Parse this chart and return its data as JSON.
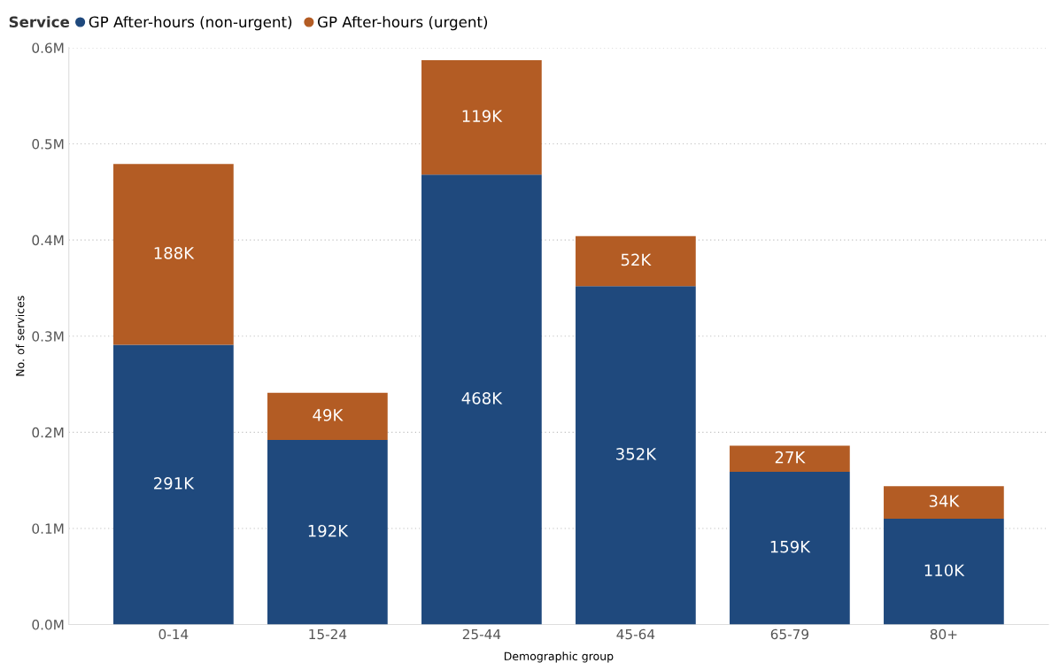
{
  "chart_data": {
    "type": "bar",
    "stacked": true,
    "xlabel": "Demographic group",
    "ylabel": "No. of services",
    "legend_title": "Service",
    "legend": "top left",
    "categories": [
      "0-14",
      "15-24",
      "25-44",
      "45-64",
      "65-79",
      "80+"
    ],
    "series": [
      {
        "name": "GP After-hours (non-urgent)",
        "color": "#1f497d",
        "values": [
          291000,
          192000,
          468000,
          352000,
          159000,
          110000
        ],
        "value_labels": [
          "291K",
          "192K",
          "468K",
          "352K",
          "159K",
          "110K"
        ]
      },
      {
        "name": "GP After-hours (urgent)",
        "color": "#b35c24",
        "values": [
          188000,
          49000,
          119000,
          52000,
          27000,
          34000
        ],
        "value_labels": [
          "188K",
          "49K",
          "119K",
          "52K",
          "27K",
          "34K"
        ]
      }
    ],
    "ylim": [
      0,
      600000
    ],
    "yticks": [
      {
        "value": 0,
        "label": "0.0M"
      },
      {
        "value": 100000,
        "label": "0.1M"
      },
      {
        "value": 200000,
        "label": "0.2M"
      },
      {
        "value": 300000,
        "label": "0.3M"
      },
      {
        "value": 400000,
        "label": "0.4M"
      },
      {
        "value": 500000,
        "label": "0.5M"
      },
      {
        "value": 600000,
        "label": "0.6M"
      }
    ],
    "grid": "y"
  }
}
